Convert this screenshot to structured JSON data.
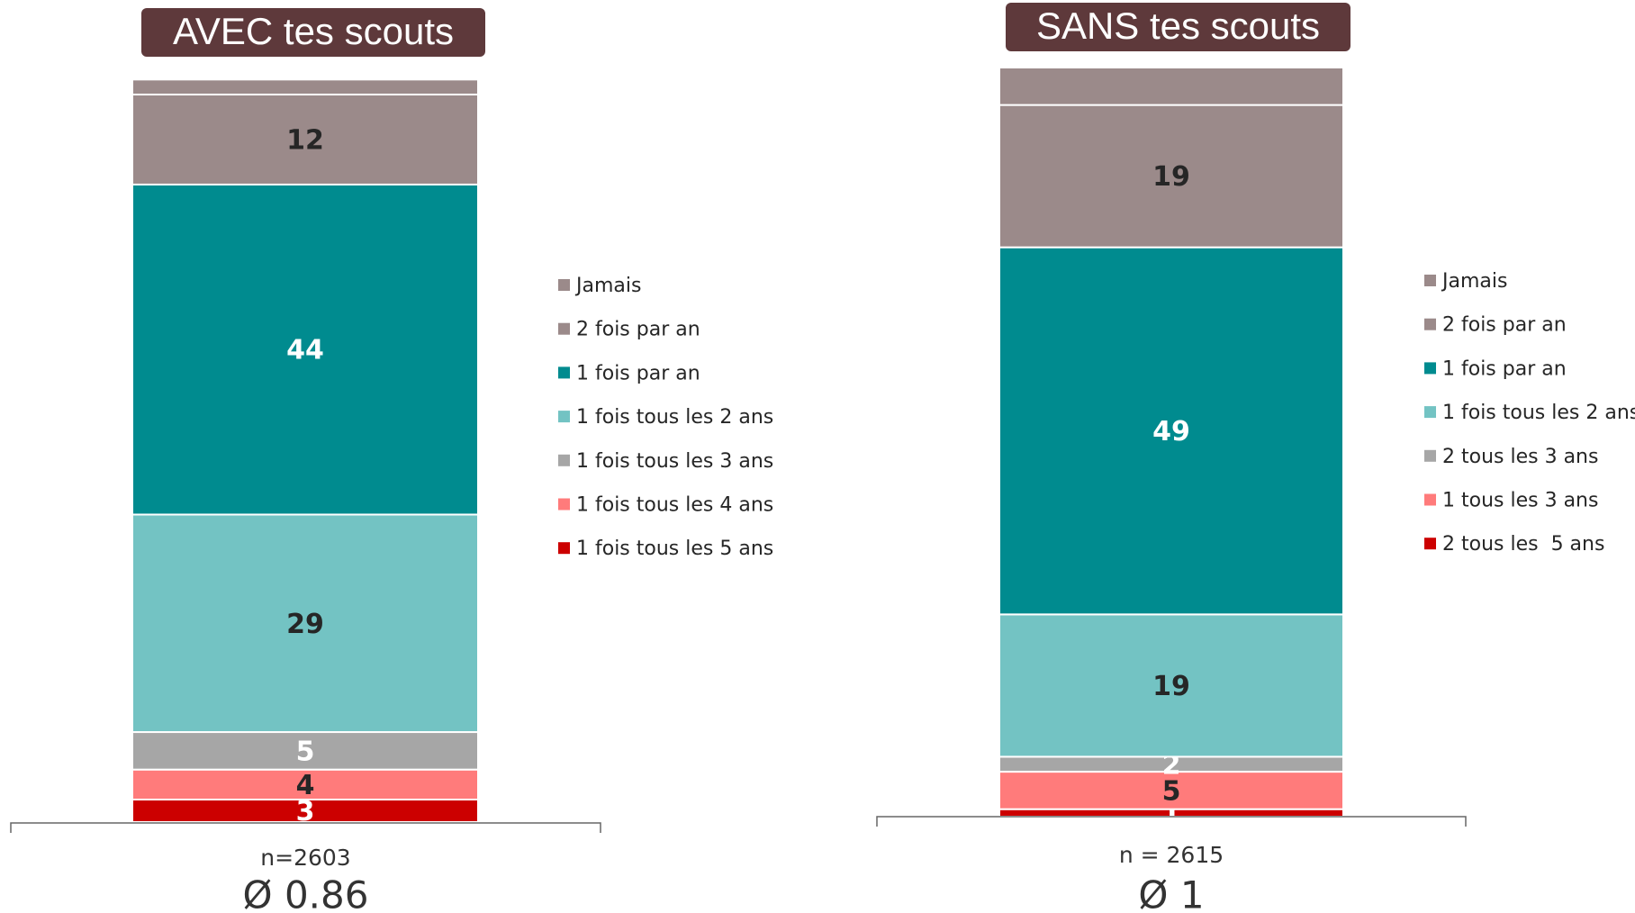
{
  "chart_data": [
    {
      "type": "stacked_bar",
      "title": "AVEC tes scouts",
      "ylim": [
        0,
        100
      ],
      "annotations": [
        "n=2603",
        "Ø 0.86"
      ],
      "series": [
        {
          "name": "Jamais",
          "color": "#9b8a8a",
          "values": [
            2
          ]
        },
        {
          "name": "2 fois par an",
          "color": "#9b8a8a",
          "values": [
            12
          ],
          "label_color": "#262626"
        },
        {
          "name": "1 fois par an",
          "color": "#008b8f",
          "values": [
            44
          ],
          "label_color": "#ffffff"
        },
        {
          "name": "1 fois tous les 2 ans",
          "color": "#73c3c3",
          "values": [
            29
          ],
          "label_color": "#262626"
        },
        {
          "name": "1 fois tous les 3 ans",
          "color": "#a6a6a6",
          "values": [
            5
          ],
          "label_color": "#ffffff"
        },
        {
          "name": "1 fois tous les 4 ans",
          "color": "#ff7b7b",
          "values": [
            4
          ],
          "label_color": "#262626"
        },
        {
          "name": "1 fois tous les 5 ans",
          "color": "#cc0000",
          "values": [
            3
          ],
          "label_color": "#ffffff"
        }
      ]
    },
    {
      "type": "stacked_bar",
      "title": "SANS tes scouts",
      "ylim": [
        0,
        100
      ],
      "annotations": [
        "n = 2615",
        "Ø 1"
      ],
      "series": [
        {
          "name": "Jamais",
          "color": "#9b8a8a",
          "values": [
            5
          ]
        },
        {
          "name": "2 fois par an",
          "color": "#9b8a8a",
          "values": [
            19
          ],
          "label_color": "#262626"
        },
        {
          "name": "1 fois par an",
          "color": "#008b8f",
          "values": [
            49
          ],
          "label_color": "#ffffff"
        },
        {
          "name": "1 fois tous les 2 ans",
          "color": "#73c3c3",
          "values": [
            19
          ],
          "label_color": "#262626"
        },
        {
          "name": "2 tous les 3 ans",
          "color": "#a6a6a6",
          "values": [
            2
          ],
          "label_color": "#ffffff"
        },
        {
          "name": "1 tous les 3 ans",
          "color": "#ff7b7b",
          "values": [
            5
          ],
          "label_color": "#262626"
        },
        {
          "name": "2 tous les  5 ans",
          "color": "#cc0000",
          "values": [
            1
          ],
          "label_color": "#ffffff"
        }
      ]
    }
  ]
}
